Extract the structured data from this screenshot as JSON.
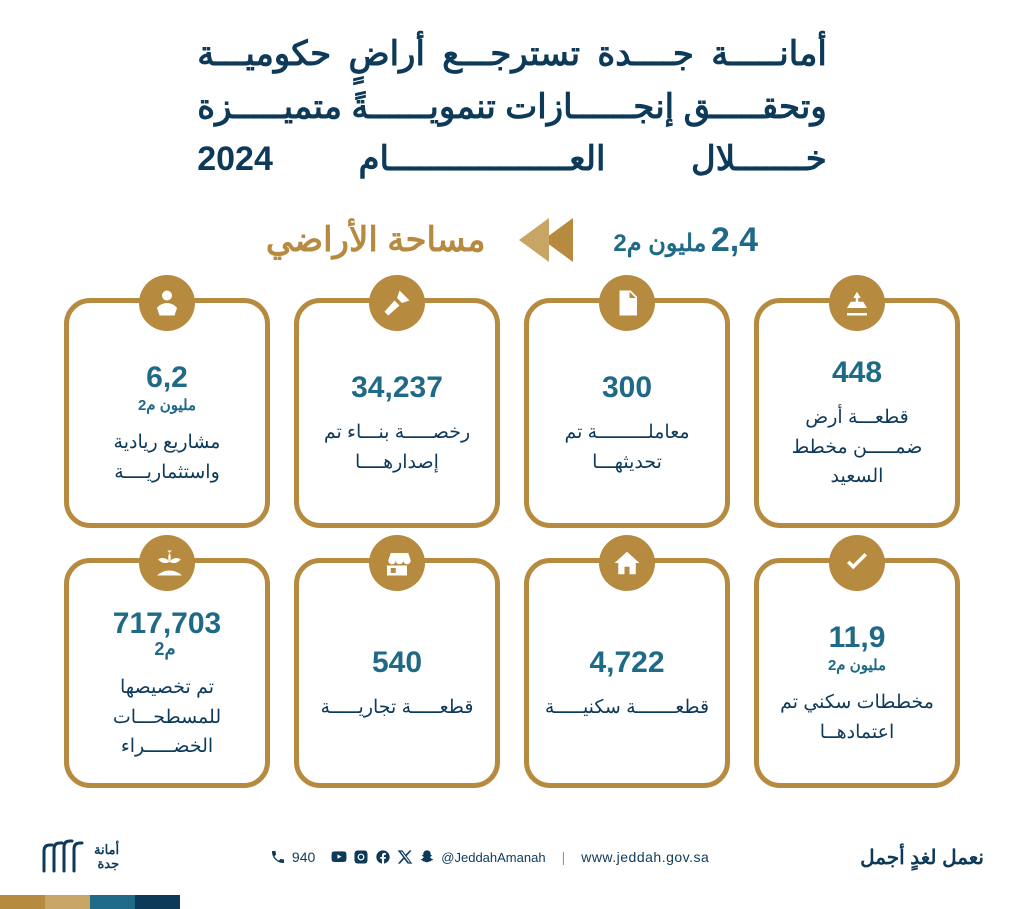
{
  "colors": {
    "navy": "#0e3a5a",
    "teal": "#1e6a87",
    "gold": "#b68a3f",
    "gold_light": "#c9a565",
    "bg": "#ffffff",
    "stripe1": "#0e3a5a",
    "stripe2": "#1e6a87",
    "stripe3": "#c9a565",
    "stripe4": "#b68a3f"
  },
  "headline": {
    "line1": "أمانـــــة جــــدة تسترجـــع أراضٍ حكوميـــة",
    "line2": "وتحقـــــق إنجــــــازات تنمويــــــةً متميـــــزة",
    "line3": "خـــــــلال العــــــــــــــــــام 2024"
  },
  "key": {
    "number": "2,4",
    "unit": "مليون م2",
    "label": "مساحة الأراضي"
  },
  "cards": [
    {
      "icon": "land",
      "number": "448",
      "unit": "",
      "label": "قطعـــة أرض ضمـــــن مخطط السعيد"
    },
    {
      "icon": "document",
      "number": "300",
      "unit": "",
      "label": "معاملـــــــــة تم تحديثهـــا"
    },
    {
      "icon": "trowel",
      "number": "34,237",
      "unit": "",
      "label": "رخصـــــة بنـــاء تم إصدارهــــا"
    },
    {
      "icon": "money",
      "number": "6,2",
      "unit": "مليون م2",
      "label": "مشاريع ريادية واستثماريــــة"
    },
    {
      "icon": "check",
      "number": "11,9",
      "unit": "مليون م2",
      "label": "مخططات سكني تم اعتمادهــا"
    },
    {
      "icon": "house",
      "number": "4,722",
      "unit": "",
      "label": "قطعـــــــة سكنيـــــة"
    },
    {
      "icon": "shop",
      "number": "540",
      "unit": "",
      "label": "قطعـــــة تجاريـــــة"
    },
    {
      "icon": "plant",
      "number": "717,703",
      "unit_inline": "م2",
      "label": "تم تخصيصها للمسطحـــات الخضـــــراء"
    }
  ],
  "footer": {
    "slogan": "نعمل لغدٍ أجمل",
    "url": "www.jeddah.gov.sa",
    "handle": "@JeddahAmanah",
    "phone": "940",
    "logo_line1": "أمانة",
    "logo_line2": "جدة"
  }
}
